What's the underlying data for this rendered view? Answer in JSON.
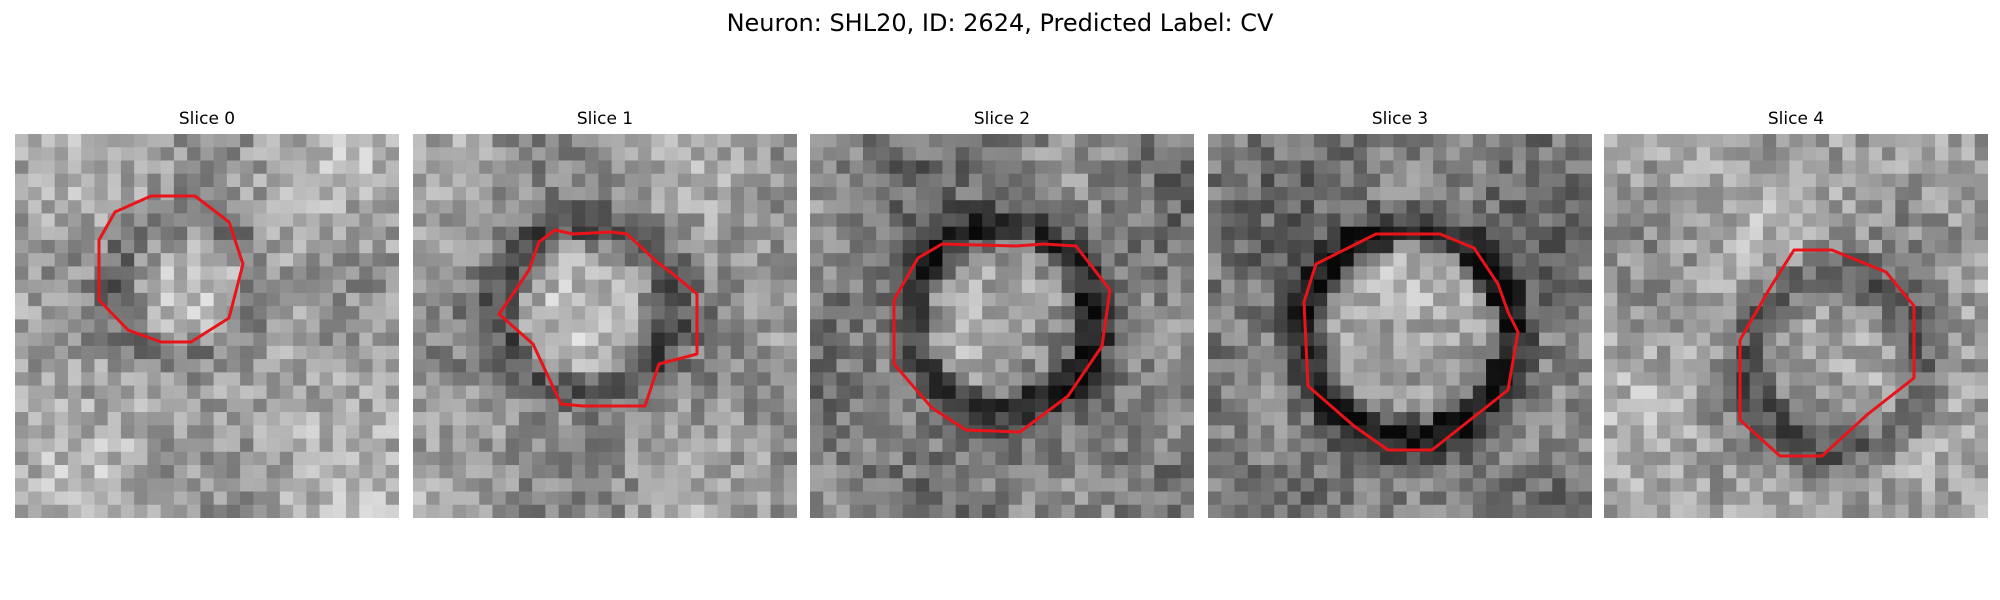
{
  "figure": {
    "title": "Neuron: SHL20, ID: 2624, Predicted Label: CV"
  },
  "panels": [
    {
      "title": "Slice 0",
      "contour_color": "#e8141a"
    },
    {
      "title": "Slice 1",
      "contour_color": "#e8141a"
    },
    {
      "title": "Slice 2",
      "contour_color": "#e8141a"
    },
    {
      "title": "Slice 3",
      "contour_color": "#e8141a"
    },
    {
      "title": "Slice 4",
      "contour_color": "#e8141a"
    }
  ],
  "colormap": "gray"
}
